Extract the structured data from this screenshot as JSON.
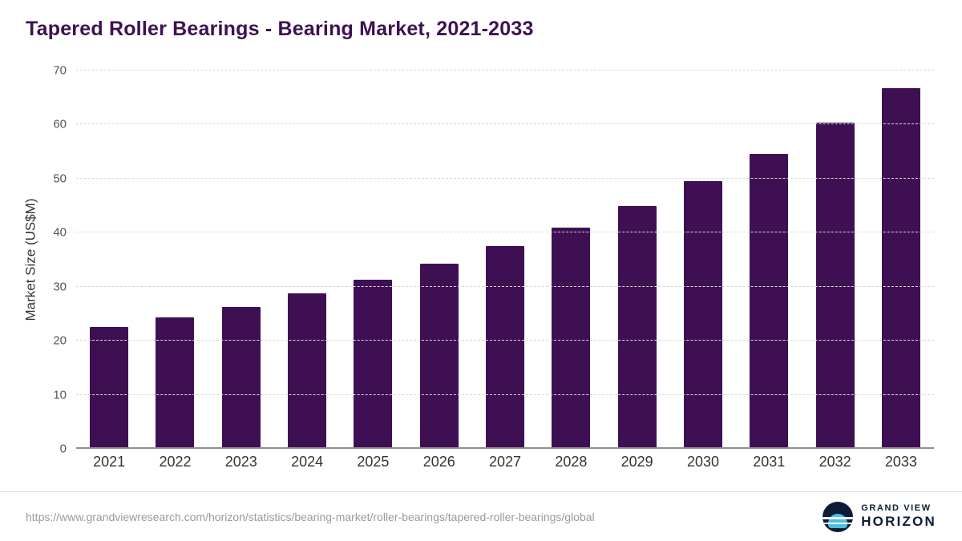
{
  "header": {
    "title": "Tapered Roller Bearings - Bearing Market, 2021-2033"
  },
  "chart_data": {
    "type": "bar",
    "title": "Tapered Roller Bearings - Bearing Market, 2021-2033",
    "categories": [
      "2021",
      "2022",
      "2023",
      "2024",
      "2025",
      "2026",
      "2027",
      "2028",
      "2029",
      "2030",
      "2031",
      "2032",
      "2033"
    ],
    "values": [
      22.5,
      24.3,
      26.3,
      28.8,
      31.3,
      34.3,
      37.5,
      41.0,
      45.0,
      49.5,
      54.6,
      60.3,
      66.7
    ],
    "xlabel": "",
    "ylabel": "Market Size (US$M)",
    "ylim": [
      0,
      70
    ],
    "yticks": [
      0,
      10,
      20,
      30,
      40,
      50,
      60,
      70
    ],
    "grid": "horizontal-dashed",
    "legend": "none",
    "bar_color": "#3e1053"
  },
  "footer": {
    "source_url": "https://www.grandviewresearch.com/horizon/statistics/bearing-market/roller-bearings/tapered-roller-bearings/global",
    "logo_top": "GRAND VIEW",
    "logo_bottom": "HORIZON"
  },
  "colors": {
    "title": "#3e1053",
    "bar": "#3e1053",
    "gridline": "#d9d9d9",
    "axis_line": "#8f8f8f",
    "tick_text": "#555555",
    "source_text": "#9a9a9a",
    "logo_navy": "#0d1b38",
    "logo_blue": "#49c0e3"
  }
}
